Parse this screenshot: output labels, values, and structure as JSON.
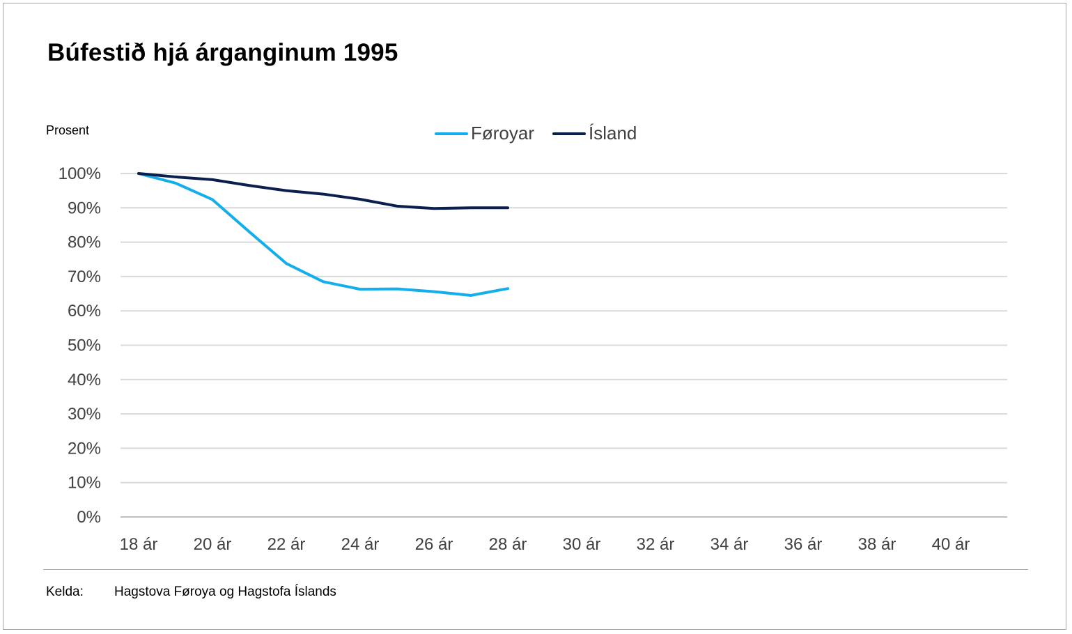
{
  "title": "Búfestið hjá árganginum 1995",
  "colors": {
    "foroyar": "#14aeea",
    "island": "#0b1f4e",
    "grid": "#d9d9d9",
    "axis": "#bfbfbf"
  },
  "legend": [
    {
      "label": "Føroyar",
      "color": "#14aeea"
    },
    {
      "label": "Ísland",
      "color": "#0b1f4e"
    }
  ],
  "source": {
    "label": "Kelda:",
    "text": "Hagstova Føroya og Hagstofa Íslands"
  },
  "chart_data": {
    "type": "line",
    "title": "Búfestið hjá árganginum 1995",
    "ylabel": "Prosent",
    "xlabel": "",
    "ylim": [
      0,
      100
    ],
    "yticks": [
      "0%",
      "10%",
      "20%",
      "30%",
      "40%",
      "50%",
      "60%",
      "70%",
      "80%",
      "90%",
      "100%"
    ],
    "xlim": [
      18,
      42
    ],
    "xticks": [
      "18 ár",
      "20 ár",
      "22 ár",
      "24 ár",
      "26 ár",
      "28 ár",
      "30 ár",
      "32 ár",
      "34 ár",
      "36 ár",
      "38 ár",
      "40 ár"
    ],
    "x": [
      18,
      19,
      20,
      21,
      22,
      23,
      24,
      25,
      26,
      27,
      28
    ],
    "grid": true,
    "legend_position": "top-center",
    "series": [
      {
        "name": "Føroyar",
        "color": "#14aeea",
        "values": [
          100,
          97.2,
          92.4,
          83,
          73.8,
          68.5,
          66.3,
          66.4,
          65.6,
          64.5,
          66.5
        ]
      },
      {
        "name": "Ísland",
        "color": "#0b1f4e",
        "values": [
          100,
          99,
          98.2,
          96.5,
          95,
          94,
          92.5,
          90.5,
          89.8,
          90,
          90
        ]
      }
    ]
  }
}
